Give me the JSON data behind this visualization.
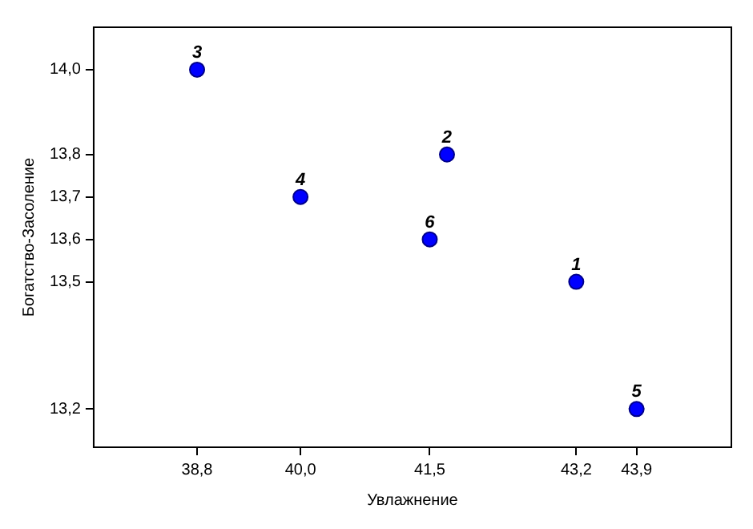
{
  "chart_data": {
    "type": "scatter",
    "xlabel": "Увлажнение",
    "ylabel": "Богатство-Засоление",
    "x": [
      43.2,
      41.7,
      38.8,
      40.0,
      43.9,
      41.5
    ],
    "series": [
      {
        "color": "#0000ff",
        "values": [
          13.5,
          13.8,
          14.0,
          13.7,
          13.2,
          13.6
        ]
      }
    ],
    "xlim": [
      37.6,
      45.0
    ],
    "ylim": [
      13.11,
      14.1
    ],
    "xticks": [
      {
        "value": 38.8,
        "label": "38,8"
      },
      {
        "value": 40.0,
        "label": "40,0"
      },
      {
        "value": 41.5,
        "label": "41,5"
      },
      {
        "value": 43.2,
        "label": "43,2"
      },
      {
        "value": 43.9,
        "label": "43,9"
      }
    ],
    "yticks": [
      {
        "value": 13.2,
        "label": "13,2"
      },
      {
        "value": 13.5,
        "label": "13,5"
      },
      {
        "value": 13.6,
        "label": "13,6"
      },
      {
        "value": 13.7,
        "label": "13,7"
      },
      {
        "value": 13.8,
        "label": "13,8"
      },
      {
        "value": 14.0,
        "label": "14,0"
      }
    ],
    "marker": "circle",
    "grid": false,
    "legend": false,
    "annotations": [
      {
        "text": "1",
        "x": 43.2,
        "y": 13.5
      },
      {
        "text": "2",
        "x": 41.7,
        "y": 13.8
      },
      {
        "text": "3",
        "x": 38.8,
        "y": 14.0
      },
      {
        "text": "4",
        "x": 40.0,
        "y": 13.7
      },
      {
        "text": "5",
        "x": 43.9,
        "y": 13.2
      },
      {
        "text": "6",
        "x": 41.5,
        "y": 13.6
      }
    ]
  }
}
